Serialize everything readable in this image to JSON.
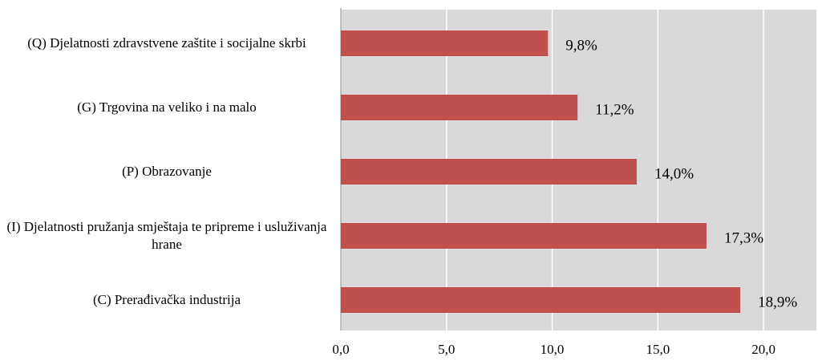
{
  "chart_data": {
    "type": "bar",
    "orientation": "horizontal",
    "categories": [
      "(Q) Djelatnosti zdravstvene zaštite i socijalne skrbi",
      "(G) Trgovina na veliko i na malo",
      "(P) Obrazovanje",
      "(I) Djelatnosti pružanja smještaja te pripreme i usluživanja hrane",
      "(C) Prerađivačka industrija"
    ],
    "values": [
      9.8,
      11.2,
      14.0,
      17.3,
      18.9
    ],
    "value_labels": [
      "9,8%",
      "11,2%",
      "14,0%",
      "17,3%",
      "18,9%"
    ],
    "color": "#c0504d",
    "xlim": [
      0,
      22.5
    ],
    "xticks": [
      {
        "value": 0,
        "label": "0,0"
      },
      {
        "value": 5,
        "label": "5,0"
      },
      {
        "value": 10,
        "label": "10,0"
      },
      {
        "value": 15,
        "label": "15,0"
      },
      {
        "value": 20,
        "label": "20,0"
      }
    ],
    "grid": true
  }
}
